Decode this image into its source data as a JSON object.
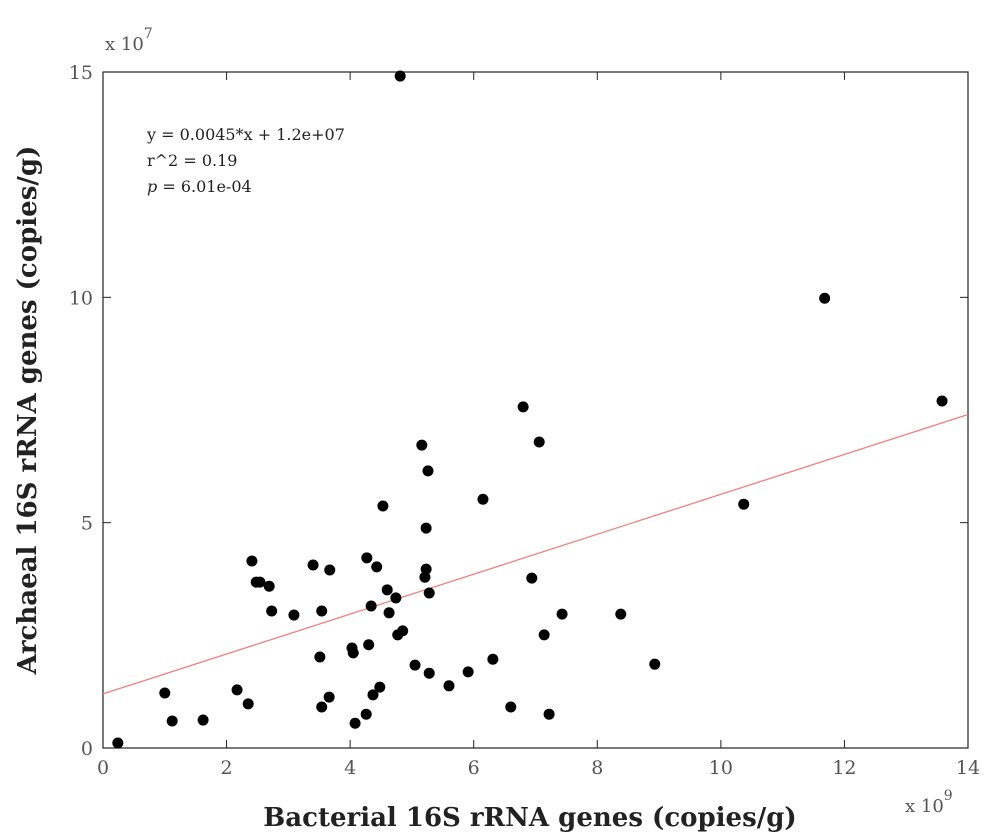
{
  "chart_data": {
    "type": "scatter",
    "x_label": "Bacterial 16S rRNA genes (copies/g)",
    "y_label": "Archaeal 16S rRNA genes (copies/g)",
    "x_offset": {
      "base": "x 10",
      "exponent": "9"
    },
    "y_offset": {
      "base": "x 10",
      "exponent": "7"
    },
    "annotations": [
      "y = 0.0045*x + 1.2e+07",
      "r^2 = 0.19"
    ],
    "p_annotation": {
      "symbol": "p",
      "text": " = 6.01e-04"
    },
    "x": [
      0.24,
      1.0,
      1.12,
      1.62,
      2.17,
      2.35,
      2.41,
      2.48,
      2.54,
      2.69,
      2.73,
      3.09,
      3.4,
      3.51,
      3.54,
      3.54,
      3.66,
      3.67,
      4.03,
      4.05,
      4.08,
      4.26,
      4.27,
      4.3,
      4.34,
      4.37,
      4.43,
      4.48,
      4.53,
      4.6,
      4.63,
      4.74,
      4.77,
      4.85,
      4.81,
      5.05,
      5.16,
      5.21,
      5.23,
      5.23,
      5.26,
      5.28,
      5.28,
      5.6,
      5.91,
      6.15,
      6.31,
      6.6,
      6.8,
      6.94,
      7.06,
      7.14,
      7.22,
      7.43,
      8.38,
      8.93,
      10.37,
      11.68,
      13.58
    ],
    "values": [
      0.11,
      1.22,
      0.6,
      0.62,
      1.29,
      0.98,
      4.15,
      3.68,
      3.68,
      3.59,
      3.04,
      2.95,
      4.06,
      2.02,
      3.04,
      0.91,
      1.13,
      3.95,
      2.22,
      2.11,
      0.55,
      0.75,
      4.22,
      2.29,
      3.15,
      1.18,
      4.02,
      1.35,
      5.37,
      3.51,
      3.0,
      3.33,
      2.51,
      2.6,
      14.91,
      1.84,
      6.72,
      3.79,
      3.97,
      4.88,
      6.15,
      3.44,
      1.66,
      1.38,
      1.69,
      5.52,
      1.97,
      0.91,
      7.57,
      3.77,
      6.79,
      2.51,
      0.75,
      2.97,
      2.97,
      1.86,
      5.41,
      9.98,
      7.7
    ],
    "color": "#000000",
    "trend_line": {
      "x": [
        0,
        14
      ],
      "values": [
        1.2,
        7.4
      ],
      "color": "#f08080"
    },
    "xlim": [
      0,
      14
    ],
    "ylim": [
      0,
      15
    ],
    "xticks": [
      0,
      2,
      4,
      6,
      8,
      10,
      12,
      14
    ],
    "yticks": [
      0,
      5,
      10,
      15
    ],
    "grid": false
  }
}
